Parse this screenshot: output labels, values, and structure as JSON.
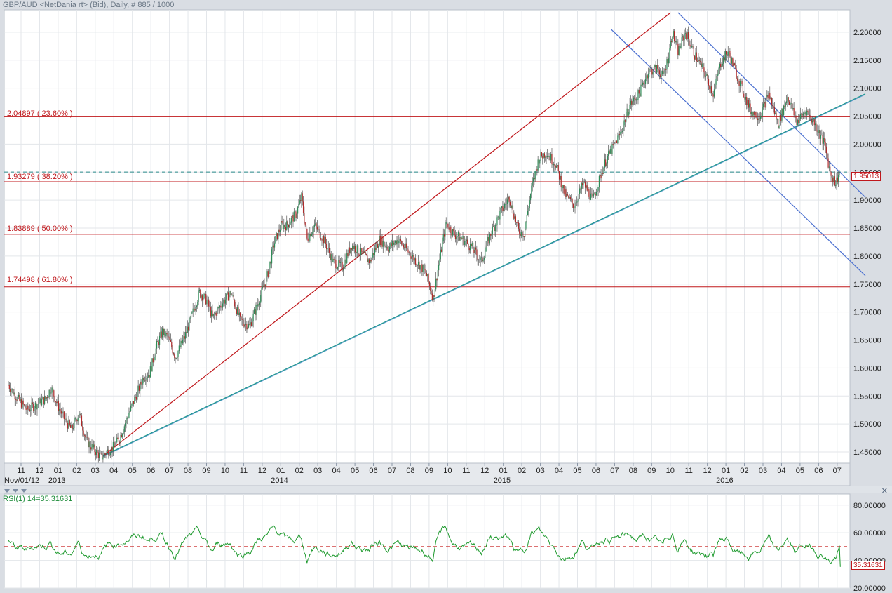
{
  "header": {
    "title": "GBP/AUD <NetDania rt> (Bid), Daily, # 885 / 1000"
  },
  "fib_levels": [
    {
      "label": "2.04897 ( 23.60% )",
      "value": 2.04897
    },
    {
      "label": "1.93279 ( 38.20% )",
      "value": 1.93279
    },
    {
      "label": "1.83889 ( 50.00% )",
      "value": 1.83889
    },
    {
      "label": "1.74498 ( 61.80% )",
      "value": 1.74498
    }
  ],
  "current_price": {
    "label": "1.95013",
    "value": 1.95013
  },
  "rsi": {
    "title": "RSI(1) 14=35.31631",
    "current_label": "35.31631",
    "current_value": 35.31631
  },
  "colors": {
    "background": "#ffffff",
    "panel": "#d9dde3",
    "grid": "#e3e6ea",
    "fib_red": "#c0181c",
    "trend_blue": "#2f7fbf",
    "trend_teal": "#1f9a8a",
    "channel_blue": "#4a6fd0",
    "bull_candle": "#2e8b57",
    "bear_candle": "#b02a2a",
    "rsi_line": "#1e9a2e",
    "rsi_mid": "#c81e1e"
  },
  "chart_data": [
    {
      "type": "candlestick",
      "title": "GBP/AUD <NetDania rt> (Bid), Daily, # 885 / 1000",
      "ylim": [
        1.43,
        2.24
      ],
      "y_ticks": [
        "1.45000",
        "1.50000",
        "1.55000",
        "1.60000",
        "1.65000",
        "1.70000",
        "1.75000",
        "1.80000",
        "1.85000",
        "1.90000",
        "1.95000",
        "2.00000",
        "2.05000",
        "2.10000",
        "2.15000",
        "2.20000"
      ],
      "x_month_labels": [
        "11",
        "12",
        "01",
        "02",
        "03",
        "04",
        "05",
        "06",
        "07",
        "08",
        "09",
        "10",
        "11",
        "12",
        "01",
        "02",
        "03",
        "04",
        "05",
        "06",
        "07",
        "08",
        "09",
        "10",
        "11",
        "12",
        "01",
        "02",
        "03",
        "04",
        "05",
        "06",
        "07",
        "08",
        "09",
        "10",
        "11",
        "12",
        "01",
        "02",
        "03",
        "04",
        "05",
        "06",
        "07"
      ],
      "x_year_labels": [
        {
          "label": "Nov/01/12",
          "month_index": 0
        },
        {
          "label": "2013",
          "month_index": 2
        },
        {
          "label": "2014",
          "month_index": 14
        },
        {
          "label": "2015",
          "month_index": 26
        },
        {
          "label": "2016",
          "month_index": 38
        }
      ],
      "price_path": [
        [
          0,
          1.57
        ],
        [
          0.5,
          1.545
        ],
        [
          1,
          1.525
        ],
        [
          1.5,
          1.535
        ],
        [
          2,
          1.545
        ],
        [
          2.3,
          1.565
        ],
        [
          2.7,
          1.53
        ],
        [
          3,
          1.51
        ],
        [
          3.4,
          1.49
        ],
        [
          3.8,
          1.52
        ],
        [
          4.2,
          1.47
        ],
        [
          4.6,
          1.455
        ],
        [
          5,
          1.44
        ],
        [
          5.3,
          1.45
        ],
        [
          5.7,
          1.46
        ],
        [
          6,
          1.475
        ],
        [
          6.5,
          1.52
        ],
        [
          7,
          1.56
        ],
        [
          7.3,
          1.585
        ],
        [
          7.6,
          1.59
        ],
        [
          8,
          1.64
        ],
        [
          8.3,
          1.665
        ],
        [
          8.6,
          1.655
        ],
        [
          9,
          1.62
        ],
        [
          9.5,
          1.655
        ],
        [
          10,
          1.705
        ],
        [
          10.3,
          1.735
        ],
        [
          10.7,
          1.72
        ],
        [
          11,
          1.69
        ],
        [
          11.5,
          1.715
        ],
        [
          12,
          1.735
        ],
        [
          12.5,
          1.685
        ],
        [
          13,
          1.675
        ],
        [
          13.5,
          1.72
        ],
        [
          14,
          1.77
        ],
        [
          14.3,
          1.82
        ],
        [
          14.7,
          1.855
        ],
        [
          15,
          1.855
        ],
        [
          15.5,
          1.875
        ],
        [
          15.8,
          1.905
        ],
        [
          16.1,
          1.83
        ],
        [
          16.5,
          1.855
        ],
        [
          17,
          1.83
        ],
        [
          17.5,
          1.79
        ],
        [
          18,
          1.78
        ],
        [
          18.5,
          1.82
        ],
        [
          19,
          1.805
        ],
        [
          19.5,
          1.79
        ],
        [
          20,
          1.83
        ],
        [
          20.5,
          1.815
        ],
        [
          21,
          1.83
        ],
        [
          21.5,
          1.81
        ],
        [
          22,
          1.79
        ],
        [
          22.5,
          1.77
        ],
        [
          22.9,
          1.725
        ],
        [
          23.2,
          1.785
        ],
        [
          23.6,
          1.86
        ],
        [
          24,
          1.84
        ],
        [
          24.5,
          1.83
        ],
        [
          25,
          1.815
        ],
        [
          25.5,
          1.79
        ],
        [
          26,
          1.84
        ],
        [
          26.5,
          1.875
        ],
        [
          27,
          1.905
        ],
        [
          27.5,
          1.845
        ],
        [
          27.8,
          1.84
        ],
        [
          28.2,
          1.92
        ],
        [
          28.6,
          1.975
        ],
        [
          29,
          1.985
        ],
        [
          29.5,
          1.965
        ],
        [
          30,
          1.91
        ],
        [
          30.5,
          1.89
        ],
        [
          31,
          1.93
        ],
        [
          31.5,
          1.9
        ],
        [
          31.8,
          1.93
        ],
        [
          32.2,
          1.97
        ],
        [
          32.6,
          1.995
        ],
        [
          33,
          2.02
        ],
        [
          33.5,
          2.07
        ],
        [
          34,
          2.09
        ],
        [
          34.5,
          2.13
        ],
        [
          35,
          2.135
        ],
        [
          35.3,
          2.12
        ],
        [
          35.6,
          2.16
        ],
        [
          35.8,
          2.2
        ],
        [
          36.1,
          2.165
        ],
        [
          36.5,
          2.2
        ],
        [
          37,
          2.16
        ],
        [
          37.5,
          2.13
        ],
        [
          38,
          2.09
        ],
        [
          38.4,
          2.145
        ],
        [
          38.8,
          2.165
        ],
        [
          39.2,
          2.13
        ],
        [
          39.6,
          2.095
        ],
        [
          40,
          2.06
        ],
        [
          40.5,
          2.05
        ],
        [
          41,
          2.09
        ],
        [
          41.5,
          2.035
        ],
        [
          42,
          2.085
        ],
        [
          42.5,
          2.04
        ],
        [
          43,
          2.06
        ],
        [
          43.5,
          2.035
        ],
        [
          44,
          2.0
        ],
        [
          44.3,
          1.95
        ],
        [
          44.6,
          1.93
        ],
        [
          44.8,
          1.95
        ]
      ],
      "fib_levels": [
        2.04897,
        1.93279,
        1.83889,
        1.74498
      ],
      "current_price": 1.95013,
      "trend_lines": [
        {
          "name": "red-fan-line",
          "from": [
            5.1,
            1.443
          ],
          "to": [
            35.7,
            2.235
          ]
        },
        {
          "name": "teal-support-line",
          "from": [
            5.1,
            1.443
          ],
          "to": [
            46.2,
            2.09
          ]
        },
        {
          "name": "channel-upper-line",
          "from": [
            36.1,
            2.235
          ],
          "to": [
            46.2,
            1.905
          ]
        },
        {
          "name": "channel-lower-line",
          "from": [
            32.5,
            2.205
          ],
          "to": [
            46.2,
            1.765
          ]
        }
      ]
    },
    {
      "type": "line",
      "title": "RSI(1) 14=35.31631",
      "ylim": [
        20,
        88
      ],
      "y_ticks": [
        "20.00000",
        "40.00000",
        "60.00000",
        "80.00000"
      ],
      "midline": 50,
      "current_value": 35.31631
    }
  ]
}
